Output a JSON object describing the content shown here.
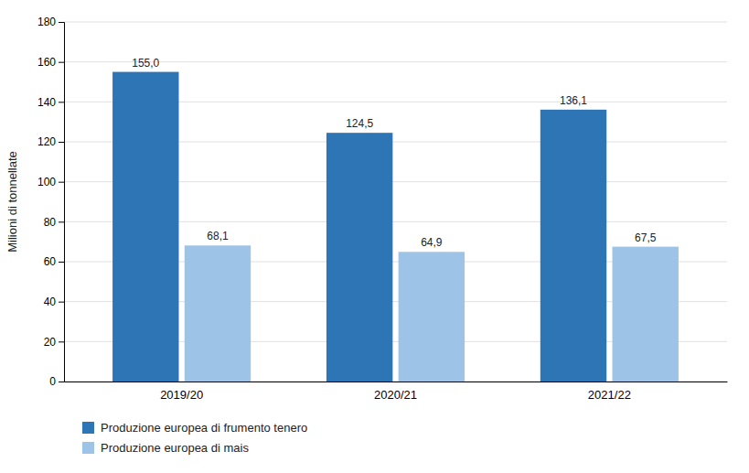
{
  "chart_data": {
    "type": "bar",
    "categories": [
      "2019/20",
      "2020/21",
      "2021/22"
    ],
    "series": [
      {
        "name": "Produzione europea di frumento tenero",
        "color": "#2E75B6",
        "values": [
          155.0,
          124.5,
          136.1
        ],
        "value_labels": [
          "155,0",
          "124,5",
          "136,1"
        ]
      },
      {
        "name": "Produzione europea di mais",
        "color": "#9DC3E6",
        "values": [
          68.1,
          64.9,
          67.5
        ],
        "value_labels": [
          "68,1",
          "64,9",
          "67,5"
        ]
      }
    ],
    "ylabel": "Milioni di tonnellate",
    "ylim": [
      0,
      180
    ],
    "yticks": [
      0,
      20,
      40,
      60,
      80,
      100,
      120,
      140,
      160,
      180
    ],
    "grid": true,
    "data_labels": true,
    "legend": "bottom"
  }
}
